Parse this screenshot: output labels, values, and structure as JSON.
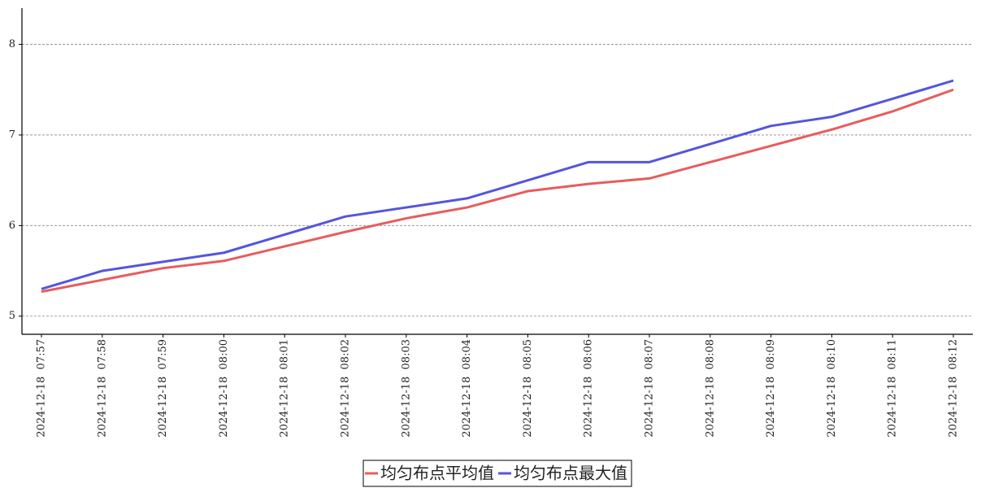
{
  "chart_data": {
    "type": "line",
    "categories": [
      "2024-12-18  07:57",
      "2024-12-18  07:58",
      "2024-12-18  07:59",
      "2024-12-18  08:00",
      "2024-12-18  08:01",
      "2024-12-18  08:02",
      "2024-12-18  08:03",
      "2024-12-18  08:04",
      "2024-12-18  08:05",
      "2024-12-18  08:06",
      "2024-12-18  08:07",
      "2024-12-18  08:08",
      "2024-12-18  08:09",
      "2024-12-18  08:10",
      "2024-12-18  08:11",
      "2024-12-18  08:12"
    ],
    "series": [
      {
        "name": "均匀布点平均值",
        "color": "#e85c5c",
        "values": [
          5.27,
          5.4,
          5.53,
          5.61,
          5.77,
          5.93,
          6.08,
          6.2,
          6.38,
          6.46,
          6.52,
          6.7,
          6.88,
          7.06,
          7.26,
          7.5
        ]
      },
      {
        "name": "均匀布点最大值",
        "color": "#5555dd",
        "values": [
          5.3,
          5.5,
          5.6,
          5.7,
          5.9,
          6.1,
          6.2,
          6.3,
          6.5,
          6.7,
          6.7,
          6.9,
          7.1,
          7.2,
          7.4,
          7.6
        ]
      }
    ],
    "ylim": [
      4.8,
      8.4
    ],
    "yticks": [
      5,
      6,
      7,
      8
    ],
    "grid": true,
    "legend": "bottom"
  }
}
